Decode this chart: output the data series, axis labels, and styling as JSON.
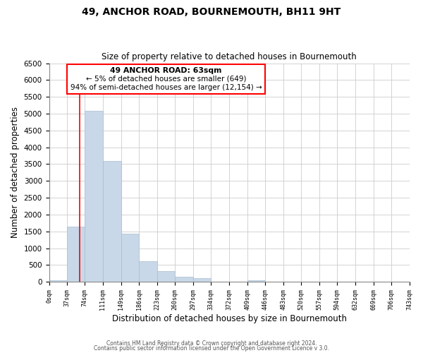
{
  "title": "49, ANCHOR ROAD, BOURNEMOUTH, BH11 9HT",
  "subtitle": "Size of property relative to detached houses in Bournemouth",
  "xlabel": "Distribution of detached houses by size in Bournemouth",
  "ylabel": "Number of detached properties",
  "bar_edges": [
    0,
    37,
    74,
    111,
    149,
    186,
    223,
    260,
    297,
    334,
    372,
    409,
    446,
    483,
    520,
    557,
    594,
    632,
    669,
    706,
    743
  ],
  "bar_heights": [
    50,
    1650,
    5080,
    3600,
    1430,
    620,
    310,
    155,
    110,
    0,
    0,
    50,
    0,
    0,
    0,
    0,
    0,
    0,
    0,
    0
  ],
  "bar_color": "#c8d8e8",
  "bar_edgecolor": "#a8bece",
  "ylim": [
    0,
    6500
  ],
  "yticks": [
    0,
    500,
    1000,
    1500,
    2000,
    2500,
    3000,
    3500,
    4000,
    4500,
    5000,
    5500,
    6000,
    6500
  ],
  "red_line_x": 63,
  "annotation_line1": "49 ANCHOR ROAD: 63sqm",
  "annotation_line2": "← 5% of detached houses are smaller (649)",
  "annotation_line3": "94% of semi-detached houses are larger (12,154) →",
  "footer_line1": "Contains HM Land Registry data © Crown copyright and database right 2024.",
  "footer_line2": "Contains public sector information licensed under the Open Government Licence v 3.0.",
  "tick_labels": [
    "0sqm",
    "37sqm",
    "74sqm",
    "111sqm",
    "149sqm",
    "186sqm",
    "223sqm",
    "260sqm",
    "297sqm",
    "334sqm",
    "372sqm",
    "409sqm",
    "446sqm",
    "483sqm",
    "520sqm",
    "557sqm",
    "594sqm",
    "632sqm",
    "669sqm",
    "706sqm",
    "743sqm"
  ],
  "grid_color": "#cccccc"
}
